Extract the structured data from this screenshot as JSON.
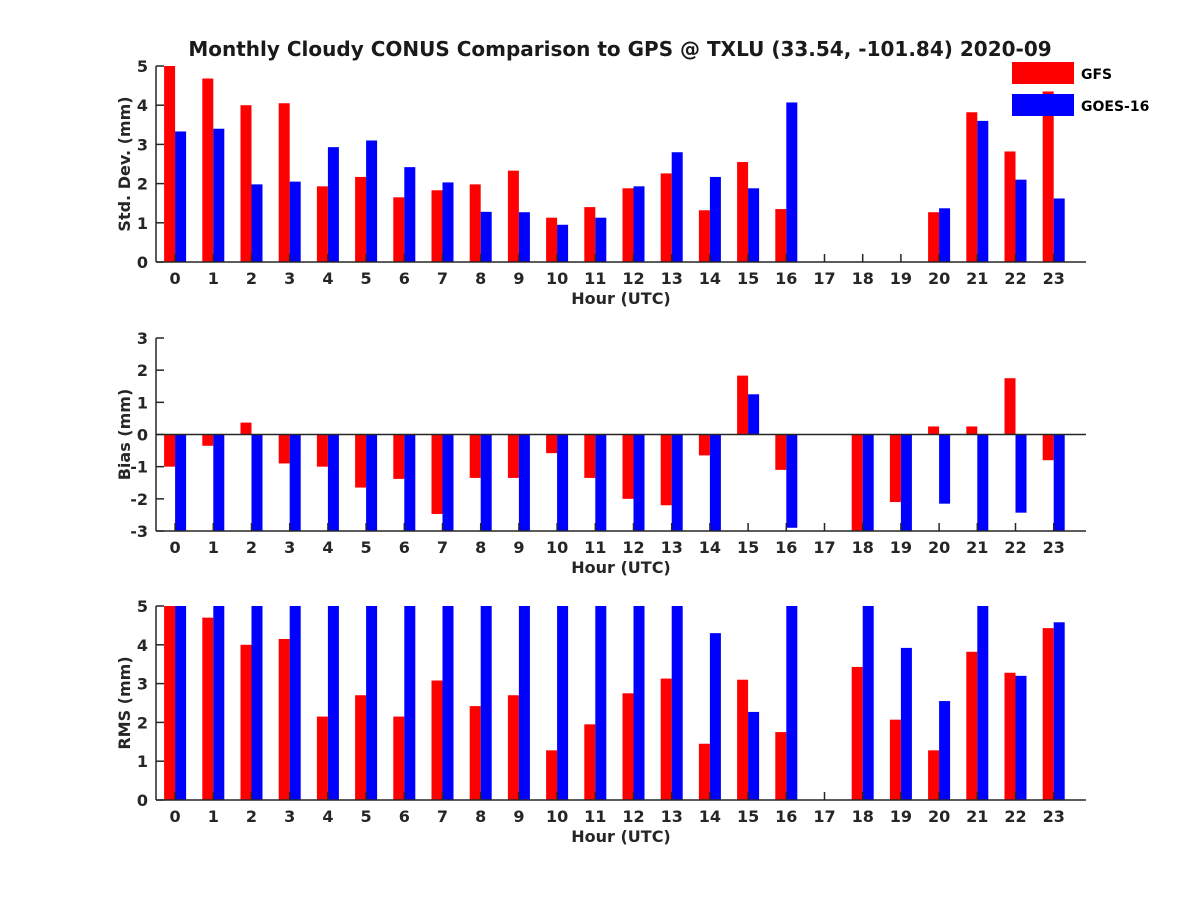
{
  "title": "Monthly Cloudy CONUS Comparison to GPS @ TXLU (33.54, -101.84) 2020-09",
  "colors": {
    "GFS": "#ff0000",
    "GOES-16": "#0000ff",
    "axis": "#262626"
  },
  "legend": {
    "placement": "top-right",
    "entries": [
      "GFS",
      "GOES-16"
    ]
  },
  "chart_data": [
    {
      "type": "bar",
      "name": "std",
      "xlabel": "Hour (UTC)",
      "ylabel": "Std. Dev. (mm)",
      "categories": [
        "0",
        "1",
        "2",
        "3",
        "4",
        "5",
        "6",
        "7",
        "8",
        "9",
        "10",
        "11",
        "12",
        "13",
        "14",
        "15",
        "16",
        "17",
        "18",
        "19",
        "20",
        "21",
        "22",
        "23"
      ],
      "ylim": [
        0,
        5
      ],
      "yticks": [
        0,
        1,
        2,
        3,
        4,
        5
      ],
      "zero_line": false,
      "series": [
        {
          "name": "GFS",
          "values": [
            5.0,
            4.68,
            4.0,
            4.05,
            1.93,
            2.17,
            1.65,
            1.83,
            1.98,
            2.33,
            1.13,
            1.4,
            1.88,
            2.26,
            1.32,
            2.55,
            1.35,
            null,
            null,
            null,
            1.27,
            3.82,
            2.82,
            4.35
          ]
        },
        {
          "name": "GOES-16",
          "values": [
            3.33,
            3.4,
            1.98,
            2.05,
            2.93,
            3.1,
            2.42,
            2.03,
            1.28,
            1.27,
            0.95,
            1.13,
            1.93,
            2.8,
            2.17,
            1.88,
            4.07,
            null,
            null,
            null,
            1.37,
            3.6,
            2.1,
            1.62
          ]
        }
      ]
    },
    {
      "type": "bar",
      "name": "bias",
      "xlabel": "Hour (UTC)",
      "ylabel": "Bias (mm)",
      "categories": [
        "0",
        "1",
        "2",
        "3",
        "4",
        "5",
        "6",
        "7",
        "8",
        "9",
        "10",
        "11",
        "12",
        "13",
        "14",
        "15",
        "16",
        "17",
        "18",
        "19",
        "20",
        "21",
        "22",
        "23"
      ],
      "ylim": [
        -3,
        3
      ],
      "yticks": [
        -3,
        -2,
        -1,
        0,
        1,
        2,
        3
      ],
      "zero_line": true,
      "series": [
        {
          "name": "GFS",
          "values": [
            -1.0,
            -0.35,
            0.37,
            -0.9,
            -1.0,
            -1.65,
            -1.38,
            -2.47,
            -1.35,
            -1.35,
            -0.58,
            -1.35,
            -2.0,
            -2.2,
            -0.65,
            1.83,
            -1.1,
            null,
            -3.0,
            -2.1,
            0.25,
            0.25,
            1.75,
            -0.8
          ]
        },
        {
          "name": "GOES-16",
          "values": [
            -3.0,
            -3.0,
            -3.0,
            -3.0,
            -3.0,
            -3.0,
            -3.0,
            -3.0,
            -3.0,
            -3.0,
            -3.0,
            -3.0,
            -3.0,
            -3.0,
            -3.0,
            1.25,
            -2.9,
            null,
            -3.0,
            -3.0,
            -2.15,
            -3.0,
            -2.43,
            -3.0
          ]
        }
      ]
    },
    {
      "type": "bar",
      "name": "rms",
      "xlabel": "Hour (UTC)",
      "ylabel": "RMS (mm)",
      "categories": [
        "0",
        "1",
        "2",
        "3",
        "4",
        "5",
        "6",
        "7",
        "8",
        "9",
        "10",
        "11",
        "12",
        "13",
        "14",
        "15",
        "16",
        "17",
        "18",
        "19",
        "20",
        "21",
        "22",
        "23"
      ],
      "ylim": [
        0,
        5
      ],
      "yticks": [
        0,
        1,
        2,
        3,
        4,
        5
      ],
      "zero_line": false,
      "series": [
        {
          "name": "GFS",
          "values": [
            5.0,
            4.7,
            4.0,
            4.15,
            2.15,
            2.7,
            2.15,
            3.08,
            2.42,
            2.7,
            1.28,
            1.95,
            2.75,
            3.13,
            1.45,
            3.1,
            1.75,
            null,
            3.43,
            2.07,
            1.28,
            3.82,
            3.28,
            4.43
          ]
        },
        {
          "name": "GOES-16",
          "values": [
            5.0,
            5.0,
            5.0,
            5.0,
            5.0,
            5.0,
            5.0,
            5.0,
            5.0,
            5.0,
            5.0,
            5.0,
            5.0,
            5.0,
            4.3,
            2.27,
            5.0,
            null,
            5.0,
            3.92,
            2.55,
            5.0,
            3.2,
            4.58
          ]
        }
      ]
    }
  ]
}
